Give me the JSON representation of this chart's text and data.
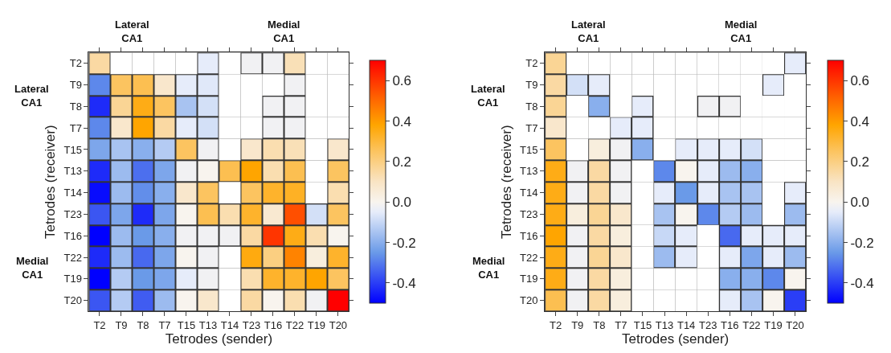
{
  "chart_data": [
    {
      "type": "heatmap",
      "xlabel": "Tetrodes (sender)",
      "ylabel": "Tetrodes (receiver)",
      "categories": [
        "T2",
        "T9",
        "T8",
        "T7",
        "T15",
        "T13",
        "T14",
        "T23",
        "T16",
        "T22",
        "T19",
        "T20"
      ],
      "y_categories": [
        "T2",
        "T9",
        "T8",
        "T7",
        "T15",
        "T13",
        "T14",
        "T23",
        "T16",
        "T22",
        "T19",
        "T20"
      ],
      "cells": [
        [
          0.15,
          null,
          null,
          null,
          null,
          -0.05,
          null,
          -0.02,
          -0.02,
          0.12,
          null,
          null
        ],
        [
          -0.28,
          0.25,
          0.27,
          0.08,
          -0.05,
          -0.06,
          null,
          null,
          null,
          -0.02,
          null,
          null
        ],
        [
          -0.43,
          0.17,
          0.35,
          0.25,
          -0.15,
          -0.08,
          null,
          null,
          -0.02,
          -0.02,
          null,
          null
        ],
        [
          -0.28,
          0.08,
          0.38,
          0.15,
          -0.05,
          -0.08,
          null,
          null,
          -0.02,
          -0.02,
          null,
          null
        ],
        [
          -0.22,
          -0.15,
          -0.2,
          -0.13,
          0.25,
          -0.02,
          null,
          0.08,
          0.13,
          0.12,
          null,
          0.08
        ],
        [
          -0.43,
          -0.17,
          -0.32,
          -0.22,
          -0.02,
          0.0,
          0.27,
          0.38,
          0.13,
          0.27,
          null,
          0.25
        ],
        [
          -0.48,
          -0.17,
          -0.27,
          -0.2,
          0.08,
          0.25,
          null,
          0.25,
          0.32,
          0.33,
          null,
          0.13
        ],
        [
          -0.36,
          -0.22,
          -0.43,
          -0.22,
          0.0,
          0.27,
          0.13,
          0.32,
          0.07,
          0.55,
          -0.08,
          0.25
        ],
        [
          -0.5,
          -0.17,
          -0.25,
          -0.2,
          -0.02,
          -0.02,
          -0.02,
          0.15,
          0.6,
          0.35,
          0.13,
          0.0
        ],
        [
          -0.43,
          -0.17,
          -0.33,
          -0.22,
          0.0,
          -0.02,
          null,
          0.36,
          0.2,
          0.45,
          0.04,
          0.32
        ],
        [
          -0.5,
          -0.13,
          -0.25,
          -0.22,
          -0.05,
          -0.02,
          null,
          0.13,
          0.32,
          0.32,
          0.38,
          0.25
        ],
        [
          -0.36,
          -0.13,
          -0.35,
          -0.17,
          0.0,
          0.08,
          null,
          0.15,
          0.0,
          0.13,
          -0.02,
          0.7
        ]
      ],
      "clim": [
        -0.5,
        0.7
      ],
      "cticks": [
        -0.4,
        -0.2,
        {
          "value": 0,
          "label": "0.0"
        },
        0.2,
        0.4,
        0.6
      ],
      "annotations": [
        "Lateral\nCA1",
        "Medial\nCA1",
        "Lateral\nCA1",
        "Medial\nCA1"
      ]
    },
    {
      "type": "heatmap",
      "xlabel": "Tetrodes (sender)",
      "ylabel": "Tetrodes (receiver)",
      "categories": [
        "T2",
        "T9",
        "T8",
        "T7",
        "T15",
        "T13",
        "T14",
        "T23",
        "T16",
        "T22",
        "T19",
        "T20"
      ],
      "y_categories": [
        "T2",
        "T9",
        "T8",
        "T7",
        "T15",
        "T13",
        "T14",
        "T23",
        "T16",
        "T22",
        "T19",
        "T20"
      ],
      "cells": [
        [
          0.17,
          null,
          null,
          null,
          null,
          null,
          null,
          null,
          null,
          null,
          null,
          -0.05
        ],
        [
          0.15,
          -0.08,
          -0.05,
          null,
          null,
          null,
          null,
          null,
          null,
          null,
          -0.05,
          null
        ],
        [
          0.17,
          null,
          -0.2,
          null,
          -0.05,
          null,
          null,
          -0.02,
          -0.02,
          null,
          null,
          null
        ],
        [
          0.08,
          null,
          null,
          -0.05,
          -0.05,
          null,
          null,
          null,
          null,
          null,
          null,
          null
        ],
        [
          0.25,
          null,
          0.04,
          -0.02,
          -0.2,
          null,
          -0.05,
          -0.05,
          -0.05,
          -0.08,
          null,
          null
        ],
        [
          0.35,
          -0.02,
          0.15,
          -0.02,
          null,
          -0.28,
          0.0,
          -0.05,
          -0.17,
          -0.2,
          null,
          null
        ],
        [
          0.35,
          -0.02,
          0.15,
          -0.02,
          null,
          -0.05,
          -0.25,
          -0.05,
          -0.15,
          -0.15,
          null,
          -0.05
        ],
        [
          0.35,
          0.04,
          0.17,
          0.08,
          null,
          -0.15,
          0.0,
          -0.28,
          -0.13,
          -0.17,
          null,
          -0.17
        ],
        [
          0.38,
          -0.02,
          0.15,
          0.04,
          null,
          -0.1,
          -0.05,
          null,
          -0.33,
          -0.05,
          -0.05,
          -0.05
        ],
        [
          0.35,
          -0.02,
          0.17,
          0.08,
          null,
          -0.17,
          -0.05,
          null,
          -0.05,
          -0.22,
          -0.05,
          -0.17
        ],
        [
          0.35,
          -0.02,
          0.15,
          0.04,
          null,
          null,
          null,
          null,
          -0.2,
          -0.2,
          -0.28,
          0.0
        ],
        [
          0.27,
          -0.02,
          0.15,
          0.04,
          null,
          null,
          null,
          null,
          -0.05,
          -0.15,
          0.0,
          -0.4
        ]
      ],
      "clim": [
        -0.5,
        0.7
      ],
      "cticks": [
        -0.4,
        -0.2,
        {
          "value": 0,
          "label": "0.0"
        },
        0.2,
        0.4,
        0.6
      ],
      "annotations": [
        "Lateral\nCA1",
        "Medial\nCA1",
        "Lateral\nCA1",
        "Medial\nCA1"
      ]
    }
  ]
}
